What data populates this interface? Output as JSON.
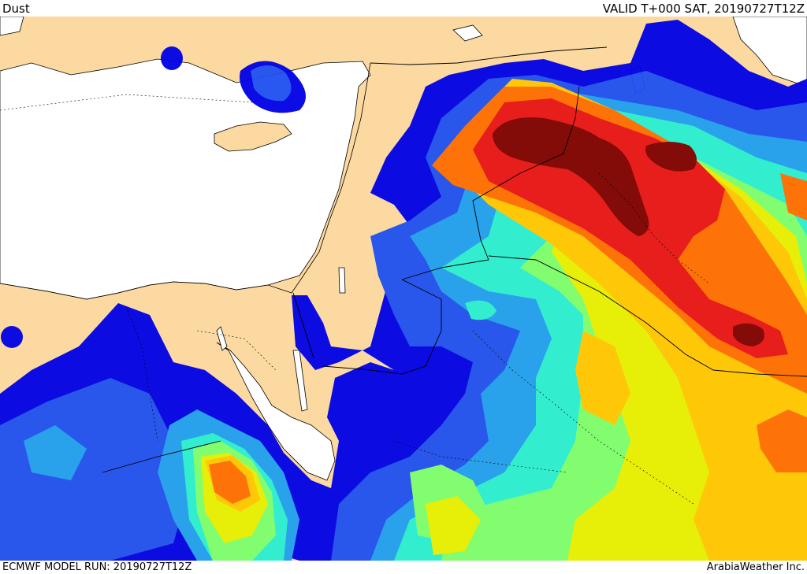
{
  "header": {
    "title": "Dust",
    "valid_time": "VALID T+000 SAT, 20190727T12Z"
  },
  "footer": {
    "model_run": "ECMWF MODEL RUN: 20190727T12Z",
    "credit": "ArabiaWeather Inc."
  },
  "colors": {
    "land": "#fbd9a0",
    "sea": "#ffffff",
    "dust_levels": [
      "#0000e6",
      "#1e50f0",
      "#1ea0f0",
      "#28f0d2",
      "#7dff6e",
      "#e6f000",
      "#ffc800",
      "#ff6e00",
      "#e61414",
      "#7d0000"
    ]
  }
}
